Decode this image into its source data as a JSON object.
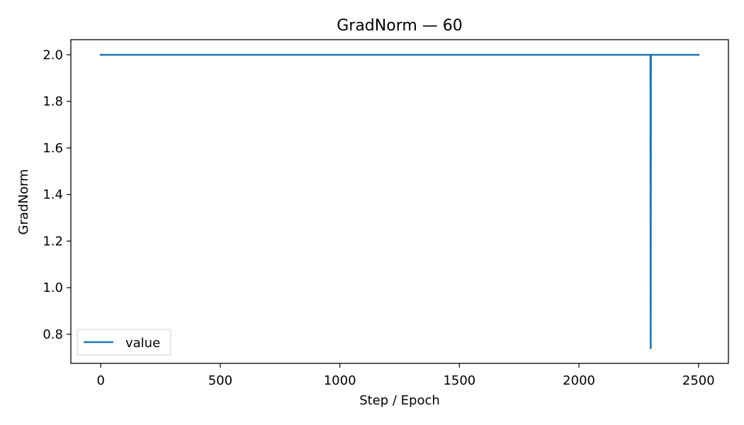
{
  "chart_data": {
    "type": "line",
    "title": "GradNorm — 60",
    "xlabel": "Step / Epoch",
    "ylabel": "GradNorm",
    "xlim": [
      -125,
      2625
    ],
    "ylim": [
      0.675,
      2.065
    ],
    "xticks": [
      0,
      500,
      1000,
      1500,
      2000,
      2500
    ],
    "xtick_labels": [
      "0",
      "500",
      "1000",
      "1500",
      "2000",
      "2500"
    ],
    "yticks": [
      0.8,
      1.0,
      1.2,
      1.4,
      1.6,
      1.8,
      2.0
    ],
    "ytick_labels": [
      "0.8",
      "1.0",
      "1.2",
      "1.4",
      "1.6",
      "1.8",
      "2.0"
    ],
    "grid": false,
    "legend_position": "lower-left",
    "series": [
      {
        "name": "value",
        "color": "#1f77b4",
        "x": [
          0,
          2299,
          2300,
          2301,
          2500
        ],
        "y": [
          2.0,
          2.0,
          0.74,
          2.0,
          2.0
        ]
      }
    ]
  }
}
